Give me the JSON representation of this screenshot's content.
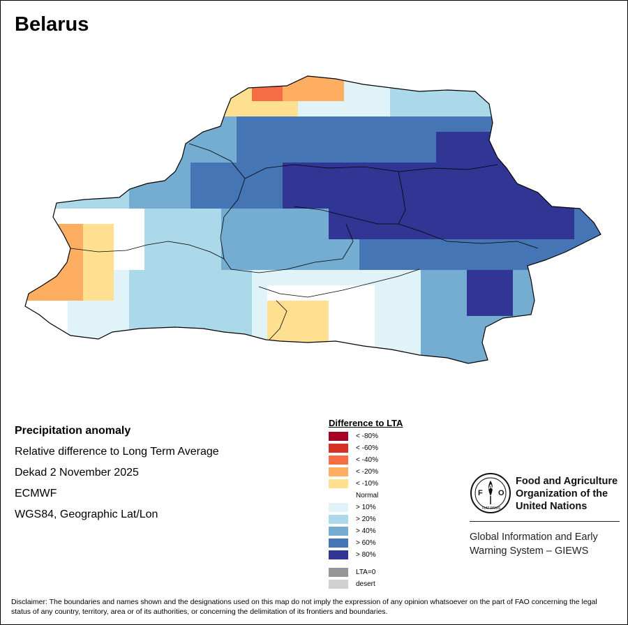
{
  "title": "Belarus",
  "info": {
    "product": "Precipitation anomaly",
    "measure": "Relative difference to Long Term Average",
    "period": "Dekad 2 November 2025",
    "source": "ECMWF",
    "projection": "WGS84, Geographic Lat/Lon"
  },
  "legend": {
    "title": "Difference to LTA",
    "items": [
      {
        "label": "< -80%",
        "color": "#a50026"
      },
      {
        "label": "< -60%",
        "color": "#d73027"
      },
      {
        "label": "< -40%",
        "color": "#f46d43"
      },
      {
        "label": "< -20%",
        "color": "#fdae61"
      },
      {
        "label": "< -10%",
        "color": "#fee090"
      },
      {
        "label": "Normal",
        "color": "#ffffff"
      },
      {
        "label": "> 10%",
        "color": "#e0f3f8"
      },
      {
        "label": "> 20%",
        "color": "#abd9e9"
      },
      {
        "label": "> 40%",
        "color": "#74add1"
      },
      {
        "label": "> 60%",
        "color": "#4575b4"
      },
      {
        "label": "> 80%",
        "color": "#313695"
      }
    ],
    "extra": [
      {
        "label": "LTA=0",
        "color": "#969696"
      },
      {
        "label": "desert",
        "color": "#d0d0d0"
      }
    ]
  },
  "fao": {
    "logo_text": "FAO",
    "motto": "FIAT PANIS",
    "name": "Food and Agriculture Organization of the United Nations",
    "giews": "Global Information and Early Warning System – GIEWS"
  },
  "disclaimer": "Disclaimer: The boundaries and names shown and the designations used on this map do not imply the expression of any opinion whatsoever on the part of FAO concerning the legal status of any country, territory, area or of its authorities, or concerning the delimitation of its frontiers and boundaries."
}
